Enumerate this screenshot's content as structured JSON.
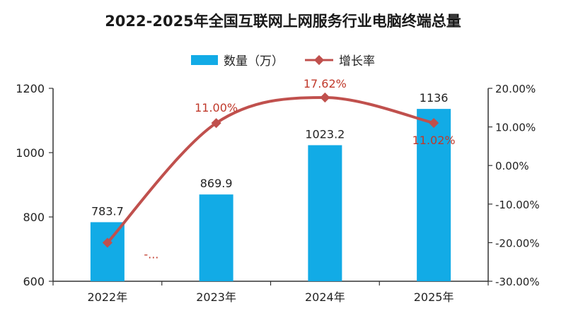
{
  "chart_data": {
    "type": "bar",
    "title": "2022-2025年全国互联网上网服务行业电脑终端总量",
    "categories": [
      "2022年",
      "2023年",
      "2024年",
      "2025年"
    ],
    "series": [
      {
        "name": "数量（万）",
        "type": "bar",
        "axis": "left",
        "values": [
          783.7,
          869.9,
          1023.2,
          1136
        ],
        "labels": [
          "783.7",
          "869.9",
          "1023.2",
          "1136"
        ],
        "color": "#12ABE6"
      },
      {
        "name": "增长率",
        "type": "line",
        "axis": "right",
        "values": [
          -20.0,
          11.0,
          17.62,
          11.02
        ],
        "labels": [
          "-...",
          "11.00%",
          "17.62%",
          "11.02%"
        ],
        "color": "#C0504D"
      }
    ],
    "y_left": {
      "min": 600,
      "max": 1200,
      "ticks": [
        "600",
        "800",
        "1000",
        "1200"
      ]
    },
    "y_right": {
      "min": -30,
      "max": 20,
      "ticks": [
        "-30.00%",
        "-20.00%",
        "-10.00%",
        "0.00%",
        "10.00%",
        "20.00%"
      ]
    },
    "grid": false,
    "legend_position": "top"
  }
}
